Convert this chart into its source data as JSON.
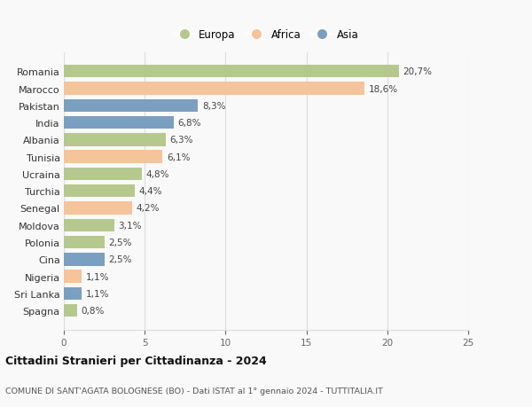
{
  "countries": [
    "Romania",
    "Marocco",
    "Pakistan",
    "India",
    "Albania",
    "Tunisia",
    "Ucraina",
    "Turchia",
    "Senegal",
    "Moldova",
    "Polonia",
    "Cina",
    "Nigeria",
    "Sri Lanka",
    "Spagna"
  ],
  "values": [
    20.7,
    18.6,
    8.3,
    6.8,
    6.3,
    6.1,
    4.8,
    4.4,
    4.2,
    3.1,
    2.5,
    2.5,
    1.1,
    1.1,
    0.8
  ],
  "labels": [
    "20,7%",
    "18,6%",
    "8,3%",
    "6,8%",
    "6,3%",
    "6,1%",
    "4,8%",
    "4,4%",
    "4,2%",
    "3,1%",
    "2,5%",
    "2,5%",
    "1,1%",
    "1,1%",
    "0,8%"
  ],
  "continents": [
    "Europa",
    "Africa",
    "Asia",
    "Asia",
    "Europa",
    "Africa",
    "Europa",
    "Europa",
    "Africa",
    "Europa",
    "Europa",
    "Asia",
    "Africa",
    "Asia",
    "Europa"
  ],
  "colors": {
    "Europa": "#b5c98e",
    "Africa": "#f5c49a",
    "Asia": "#7a9fc0"
  },
  "legend_labels": [
    "Europa",
    "Africa",
    "Asia"
  ],
  "legend_colors": [
    "#b5c98e",
    "#f5c49a",
    "#7a9fc0"
  ],
  "xlim": [
    0,
    25
  ],
  "xticks": [
    0,
    5,
    10,
    15,
    20,
    25
  ],
  "title": "Cittadini Stranieri per Cittadinanza - 2024",
  "subtitle": "COMUNE DI SANT'AGATA BOLOGNESE (BO) - Dati ISTAT al 1° gennaio 2024 - TUTTITALIA.IT",
  "background_color": "#f9f9f9",
  "grid_color": "#dddddd"
}
